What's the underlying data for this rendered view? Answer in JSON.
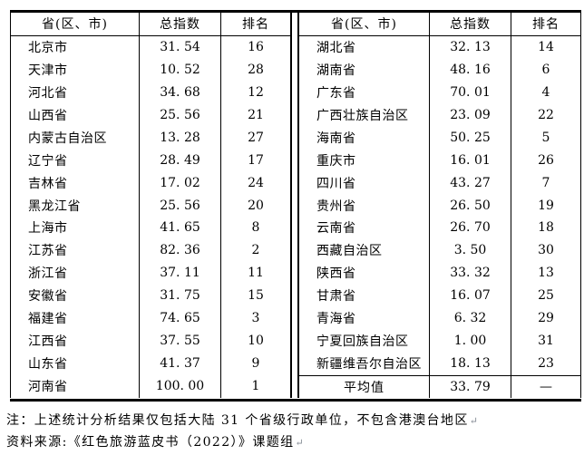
{
  "table": {
    "columns": [
      "省(区、市)",
      "总指数",
      "排名"
    ],
    "left_rows": [
      {
        "province": "北京市",
        "index": "31. 54",
        "rank": "16"
      },
      {
        "province": "天津市",
        "index": "10. 52",
        "rank": "28"
      },
      {
        "province": "河北省",
        "index": "34. 68",
        "rank": "12"
      },
      {
        "province": "山西省",
        "index": "25. 56",
        "rank": "21"
      },
      {
        "province": "内蒙古自治区",
        "index": "13. 28",
        "rank": "27"
      },
      {
        "province": "辽宁省",
        "index": "28. 49",
        "rank": "17"
      },
      {
        "province": "吉林省",
        "index": "17. 02",
        "rank": "24"
      },
      {
        "province": "黑龙江省",
        "index": "25. 56",
        "rank": "20"
      },
      {
        "province": "上海市",
        "index": "41. 65",
        "rank": "8"
      },
      {
        "province": "江苏省",
        "index": "82. 36",
        "rank": "2"
      },
      {
        "province": "浙江省",
        "index": "37. 11",
        "rank": "11"
      },
      {
        "province": "安徽省",
        "index": "31. 75",
        "rank": "15"
      },
      {
        "province": "福建省",
        "index": "74. 65",
        "rank": "3"
      },
      {
        "province": "江西省",
        "index": "37. 55",
        "rank": "10"
      },
      {
        "province": "山东省",
        "index": "41. 37",
        "rank": "9"
      },
      {
        "province": "河南省",
        "index": "100. 00",
        "rank": "1"
      }
    ],
    "right_rows": [
      {
        "province": "湖北省",
        "index": "32. 13",
        "rank": "14"
      },
      {
        "province": "湖南省",
        "index": "48. 16",
        "rank": "6"
      },
      {
        "province": "广东省",
        "index": "70. 01",
        "rank": "4"
      },
      {
        "province": "广西壮族自治区",
        "index": "23. 09",
        "rank": "22"
      },
      {
        "province": "海南省",
        "index": "50. 25",
        "rank": "5"
      },
      {
        "province": "重庆市",
        "index": "16. 01",
        "rank": "26"
      },
      {
        "province": "四川省",
        "index": "43. 27",
        "rank": "7"
      },
      {
        "province": "贵州省",
        "index": "26. 50",
        "rank": "19"
      },
      {
        "province": "云南省",
        "index": "26. 70",
        "rank": "18"
      },
      {
        "province": "西藏自治区",
        "index": "3. 50",
        "rank": "30"
      },
      {
        "province": "陕西省",
        "index": "33. 32",
        "rank": "13"
      },
      {
        "province": "甘肃省",
        "index": "16. 07",
        "rank": "25"
      },
      {
        "province": "青海省",
        "index": "6. 32",
        "rank": "29"
      },
      {
        "province": "宁夏回族自治区",
        "index": "1. 00",
        "rank": "31"
      },
      {
        "province": "新疆维吾尔自治区",
        "index": "18. 13",
        "rank": "23"
      },
      {
        "province": "平均值",
        "index": "33. 79",
        "rank": "—",
        "is_average": true
      }
    ]
  },
  "notes": {
    "note1": "注：上述统计分析结果仅包括大陆 31 个省级行政单位，不包含港澳台地区",
    "note2": "资料来源:《红色旅游蓝皮书（2022）》课题组",
    "paragraph_mark": "↵"
  },
  "colors": {
    "text": "#000000",
    "border": "#000000",
    "background": "#ffffff",
    "paragraph_mark": "#848b94"
  }
}
